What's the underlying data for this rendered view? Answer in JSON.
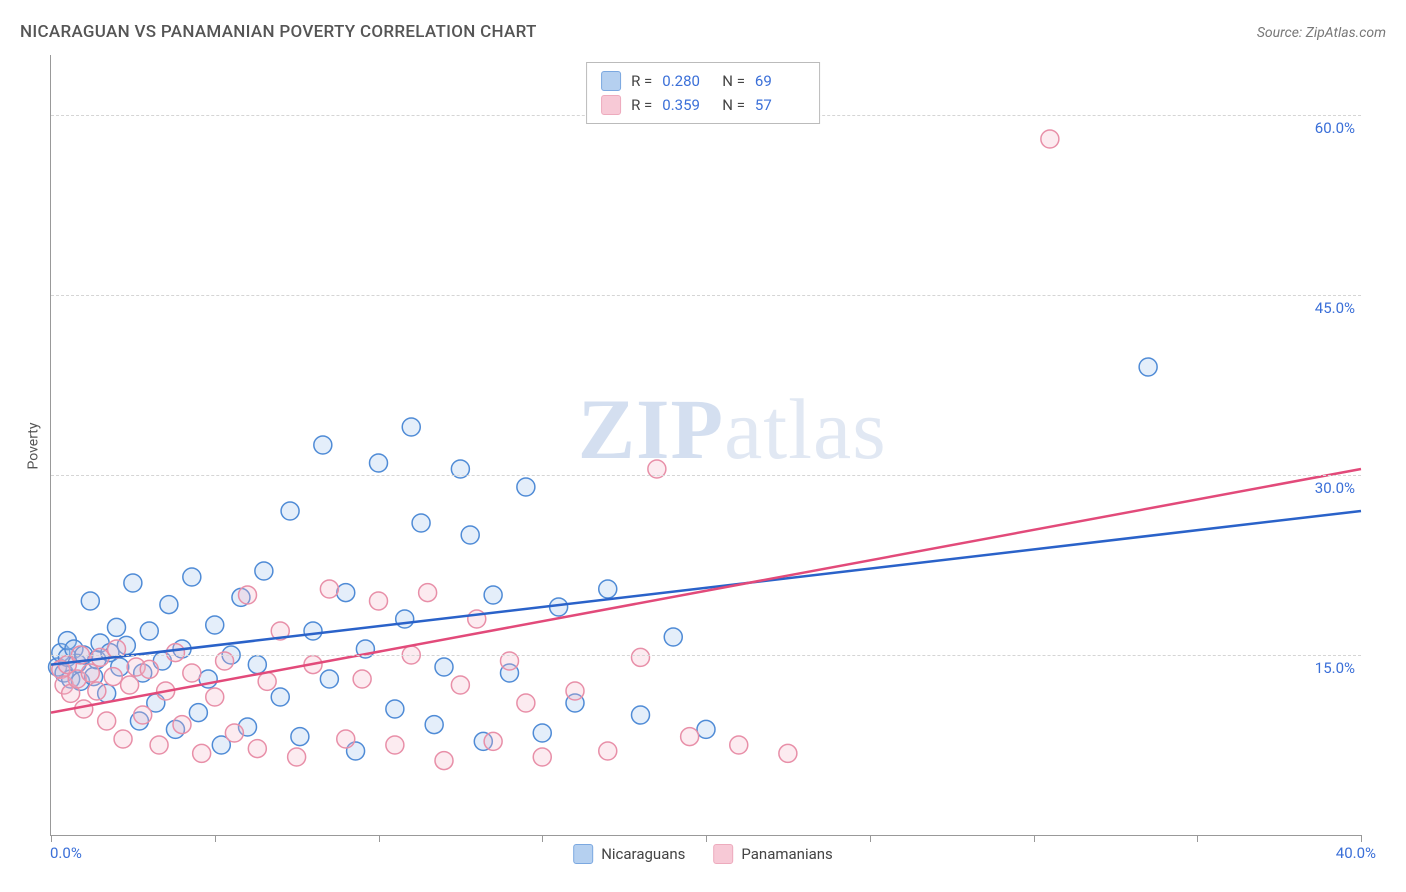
{
  "title": "NICARAGUAN VS PANAMANIAN POVERTY CORRELATION CHART",
  "source": "Source: ZipAtlas.com",
  "ylabel": "Poverty",
  "watermark": {
    "bold": "ZIP",
    "rest": "atlas"
  },
  "chart": {
    "type": "scatter",
    "xlim": [
      0,
      40
    ],
    "ylim": [
      0,
      65
    ],
    "x_origin_label": "0.0%",
    "x_max_label": "40.0%",
    "y_ticks": [
      15,
      30,
      45,
      60
    ],
    "y_tick_labels": [
      "15.0%",
      "30.0%",
      "45.0%",
      "60.0%"
    ],
    "x_tick_positions": [
      0,
      5,
      10,
      15,
      20,
      25,
      30,
      35,
      40
    ],
    "background_color": "#ffffff",
    "grid_color": "#d5d5d5",
    "axis_color": "#999999",
    "label_color": "#3a6fd8",
    "marker_radius": 9,
    "marker_stroke_width": 1.5,
    "marker_fill_opacity": 0.28,
    "line_width": 2.5,
    "series": [
      {
        "name": "Nicaraguans",
        "stroke": "#4f8bd6",
        "fill": "#9dc1ec",
        "line_color": "#2a62c9",
        "R": "0.280",
        "N": "69",
        "trend": {
          "x1": 0,
          "y1": 14.2,
          "x2": 40,
          "y2": 27.0
        },
        "points": [
          [
            0.2,
            14
          ],
          [
            0.3,
            15.2
          ],
          [
            0.4,
            13.5
          ],
          [
            0.5,
            14.8
          ],
          [
            0.5,
            16.2
          ],
          [
            0.6,
            13
          ],
          [
            0.7,
            15.5
          ],
          [
            0.8,
            14.3
          ],
          [
            0.9,
            12.8
          ],
          [
            1.0,
            15
          ],
          [
            1.2,
            19.5
          ],
          [
            1.3,
            13.2
          ],
          [
            1.4,
            14.6
          ],
          [
            1.5,
            16
          ],
          [
            1.7,
            11.8
          ],
          [
            1.8,
            15.2
          ],
          [
            2.0,
            17.3
          ],
          [
            2.1,
            14
          ],
          [
            2.3,
            15.8
          ],
          [
            2.5,
            21
          ],
          [
            2.7,
            9.5
          ],
          [
            2.8,
            13.5
          ],
          [
            3.0,
            17
          ],
          [
            3.2,
            11
          ],
          [
            3.4,
            14.5
          ],
          [
            3.6,
            19.2
          ],
          [
            3.8,
            8.8
          ],
          [
            4.0,
            15.5
          ],
          [
            4.3,
            21.5
          ],
          [
            4.5,
            10.2
          ],
          [
            4.8,
            13
          ],
          [
            5.0,
            17.5
          ],
          [
            5.2,
            7.5
          ],
          [
            5.5,
            15
          ],
          [
            5.8,
            19.8
          ],
          [
            6.0,
            9
          ],
          [
            6.3,
            14.2
          ],
          [
            6.5,
            22
          ],
          [
            7.0,
            11.5
          ],
          [
            7.3,
            27
          ],
          [
            7.6,
            8.2
          ],
          [
            8.0,
            17
          ],
          [
            8.3,
            32.5
          ],
          [
            8.5,
            13
          ],
          [
            9.0,
            20.2
          ],
          [
            9.3,
            7
          ],
          [
            9.6,
            15.5
          ],
          [
            10.0,
            31
          ],
          [
            10.5,
            10.5
          ],
          [
            10.8,
            18
          ],
          [
            11.0,
            34
          ],
          [
            11.3,
            26
          ],
          [
            11.7,
            9.2
          ],
          [
            12.0,
            14
          ],
          [
            12.5,
            30.5
          ],
          [
            12.8,
            25
          ],
          [
            13.2,
            7.8
          ],
          [
            13.5,
            20
          ],
          [
            14.0,
            13.5
          ],
          [
            14.5,
            29
          ],
          [
            15.0,
            8.5
          ],
          [
            15.5,
            19
          ],
          [
            16.0,
            11
          ],
          [
            17.0,
            20.5
          ],
          [
            18.0,
            10
          ],
          [
            19.0,
            16.5
          ],
          [
            20.0,
            8.8
          ],
          [
            33.5,
            39
          ]
        ]
      },
      {
        "name": "Panamanians",
        "stroke": "#e88fa8",
        "fill": "#f5b8c9",
        "line_color": "#e24a7a",
        "R": "0.359",
        "N": "57",
        "trend": {
          "x1": 0,
          "y1": 10.2,
          "x2": 40,
          "y2": 30.5
        },
        "points": [
          [
            0.3,
            13.8
          ],
          [
            0.4,
            12.5
          ],
          [
            0.5,
            14.2
          ],
          [
            0.6,
            11.8
          ],
          [
            0.8,
            13
          ],
          [
            0.9,
            15
          ],
          [
            1.0,
            10.5
          ],
          [
            1.2,
            13.5
          ],
          [
            1.4,
            12
          ],
          [
            1.5,
            14.8
          ],
          [
            1.7,
            9.5
          ],
          [
            1.9,
            13.2
          ],
          [
            2.0,
            15.5
          ],
          [
            2.2,
            8
          ],
          [
            2.4,
            12.5
          ],
          [
            2.6,
            14
          ],
          [
            2.8,
            10
          ],
          [
            3.0,
            13.8
          ],
          [
            3.3,
            7.5
          ],
          [
            3.5,
            12
          ],
          [
            3.8,
            15.2
          ],
          [
            4.0,
            9.2
          ],
          [
            4.3,
            13.5
          ],
          [
            4.6,
            6.8
          ],
          [
            5.0,
            11.5
          ],
          [
            5.3,
            14.5
          ],
          [
            5.6,
            8.5
          ],
          [
            6.0,
            20
          ],
          [
            6.3,
            7.2
          ],
          [
            6.6,
            12.8
          ],
          [
            7.0,
            17
          ],
          [
            7.5,
            6.5
          ],
          [
            8.0,
            14.2
          ],
          [
            8.5,
            20.5
          ],
          [
            9.0,
            8
          ],
          [
            9.5,
            13
          ],
          [
            10.0,
            19.5
          ],
          [
            10.5,
            7.5
          ],
          [
            11.0,
            15
          ],
          [
            11.5,
            20.2
          ],
          [
            12.0,
            6.2
          ],
          [
            12.5,
            12.5
          ],
          [
            13.0,
            18
          ],
          [
            13.5,
            7.8
          ],
          [
            14.0,
            14.5
          ],
          [
            14.5,
            11
          ],
          [
            15.0,
            6.5
          ],
          [
            16.0,
            12
          ],
          [
            17.0,
            7
          ],
          [
            18.0,
            14.8
          ],
          [
            18.5,
            30.5
          ],
          [
            19.5,
            8.2
          ],
          [
            21.0,
            7.5
          ],
          [
            22.5,
            6.8
          ],
          [
            30.5,
            58
          ]
        ]
      }
    ]
  },
  "legend": {
    "top_rows": [
      {
        "series_idx": 0,
        "r_label": "R =",
        "n_label": "N ="
      },
      {
        "series_idx": 1,
        "r_label": "R =",
        "n_label": "N ="
      }
    ]
  }
}
